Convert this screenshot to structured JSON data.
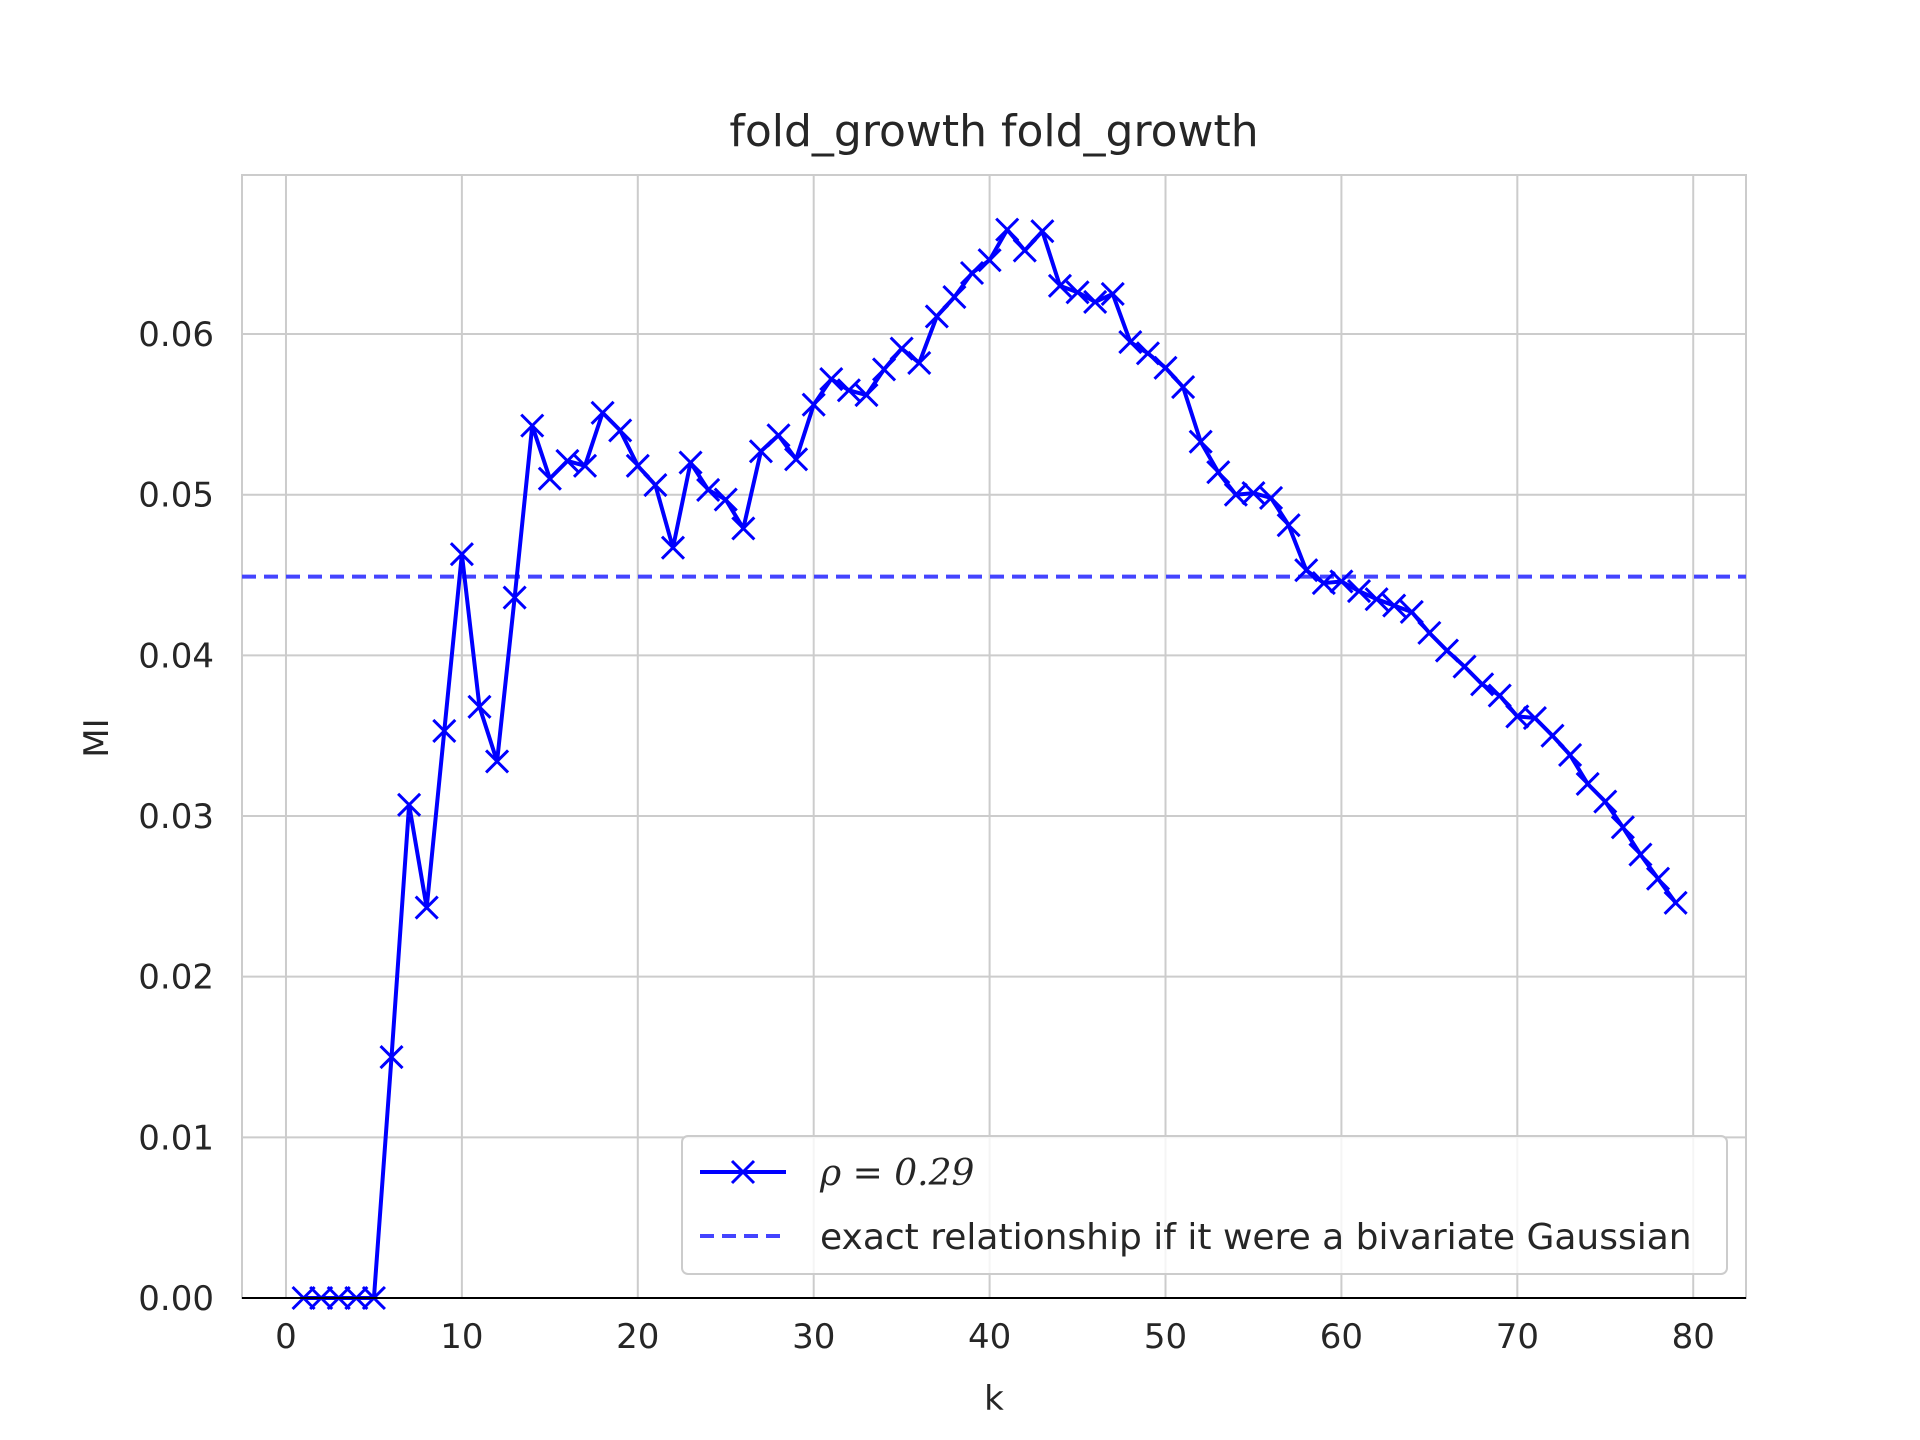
{
  "chart_data": {
    "type": "line",
    "title": "fold_growth fold_growth",
    "xlabel": "k",
    "ylabel": "MI",
    "xlim": [
      -2.5,
      83
    ],
    "ylim": [
      0,
      0.0699
    ],
    "xticks": [
      0,
      10,
      20,
      30,
      40,
      50,
      60,
      70,
      80
    ],
    "yticks": [
      0.0,
      0.01,
      0.02,
      0.03,
      0.04,
      0.05,
      0.06
    ],
    "xtick_labels": [
      "0",
      "10",
      "20",
      "30",
      "40",
      "50",
      "60",
      "70",
      "80"
    ],
    "ytick_labels": [
      "0.00",
      "0.01",
      "0.02",
      "0.03",
      "0.04",
      "0.05",
      "0.06"
    ],
    "grid": true,
    "legend_position": "lower-right",
    "series": [
      {
        "name": "ρ = 0.29",
        "legend_label": "ρ = 0.29",
        "style": "solid line with x markers",
        "color": "#0000ff",
        "x": [
          1,
          2,
          3,
          4,
          5,
          6,
          7,
          8,
          9,
          10,
          11,
          12,
          13,
          14,
          15,
          16,
          17,
          18,
          19,
          20,
          21,
          22,
          23,
          24,
          25,
          26,
          27,
          28,
          29,
          30,
          31,
          32,
          33,
          34,
          35,
          36,
          37,
          38,
          39,
          40,
          41,
          42,
          43,
          44,
          45,
          46,
          47,
          48,
          49,
          50,
          51,
          52,
          53,
          54,
          55,
          56,
          57,
          58,
          59,
          60,
          61,
          62,
          63,
          64,
          65,
          66,
          67,
          68,
          69,
          70,
          71,
          72,
          73,
          74,
          75,
          76,
          77,
          78,
          79
        ],
        "y": [
          0.0,
          0.0,
          0.0,
          0.0,
          0.0,
          0.015,
          0.0307,
          0.0243,
          0.0353,
          0.0463,
          0.0368,
          0.0334,
          0.0436,
          0.0543,
          0.051,
          0.0521,
          0.0518,
          0.0551,
          0.054,
          0.0518,
          0.0506,
          0.0467,
          0.052,
          0.0503,
          0.0497,
          0.0479,
          0.0527,
          0.0537,
          0.0522,
          0.0556,
          0.0572,
          0.0565,
          0.0562,
          0.0578,
          0.0591,
          0.0582,
          0.0611,
          0.0623,
          0.0638,
          0.0646,
          0.0665,
          0.0652,
          0.0664,
          0.063,
          0.0626,
          0.062,
          0.0625,
          0.0595,
          0.0588,
          0.0579,
          0.0567,
          0.0533,
          0.0514,
          0.05,
          0.0501,
          0.0498,
          0.0481,
          0.0453,
          0.0445,
          0.0446,
          0.044,
          0.0435,
          0.0431,
          0.0427,
          0.0414,
          0.0403,
          0.0393,
          0.0382,
          0.0375,
          0.0362,
          0.0361,
          0.035,
          0.0338,
          0.032,
          0.0309,
          0.0293,
          0.0276,
          0.0261,
          0.0246
        ]
      },
      {
        "name": "exact relationship if it were a bivariate Gaussian",
        "legend_label": "exact relationship if it were a bivariate Gaussian",
        "style": "dashed horizontal line",
        "color": "#4444ff",
        "y": 0.0449
      }
    ]
  }
}
